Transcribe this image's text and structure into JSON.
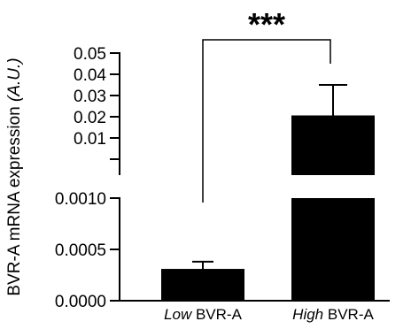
{
  "chart_data": {
    "type": "bar",
    "ylabel_main": "BVR-A mRNA expression ",
    "ylabel_unit": "(A.U.)",
    "categories": [
      {
        "italic": "Low",
        "rest": " BVR-A"
      },
      {
        "italic": "High",
        "rest": " BVR-A"
      }
    ],
    "values": [
      0.00031,
      0.0265
    ],
    "error_upper": [
      0.00038,
      0.038
    ],
    "axis_segments": {
      "lower": {
        "range": [
          0,
          0.001
        ],
        "ticks": [
          "0.0000",
          "0.0005",
          "0.0010"
        ]
      },
      "upper": {
        "range": [
          0.005,
          0.05
        ],
        "ticks": [
          "0.01",
          "0.02",
          "0.03",
          "0.04",
          "0.05"
        ]
      }
    },
    "significance": "***",
    "bar_color": "#000000"
  }
}
